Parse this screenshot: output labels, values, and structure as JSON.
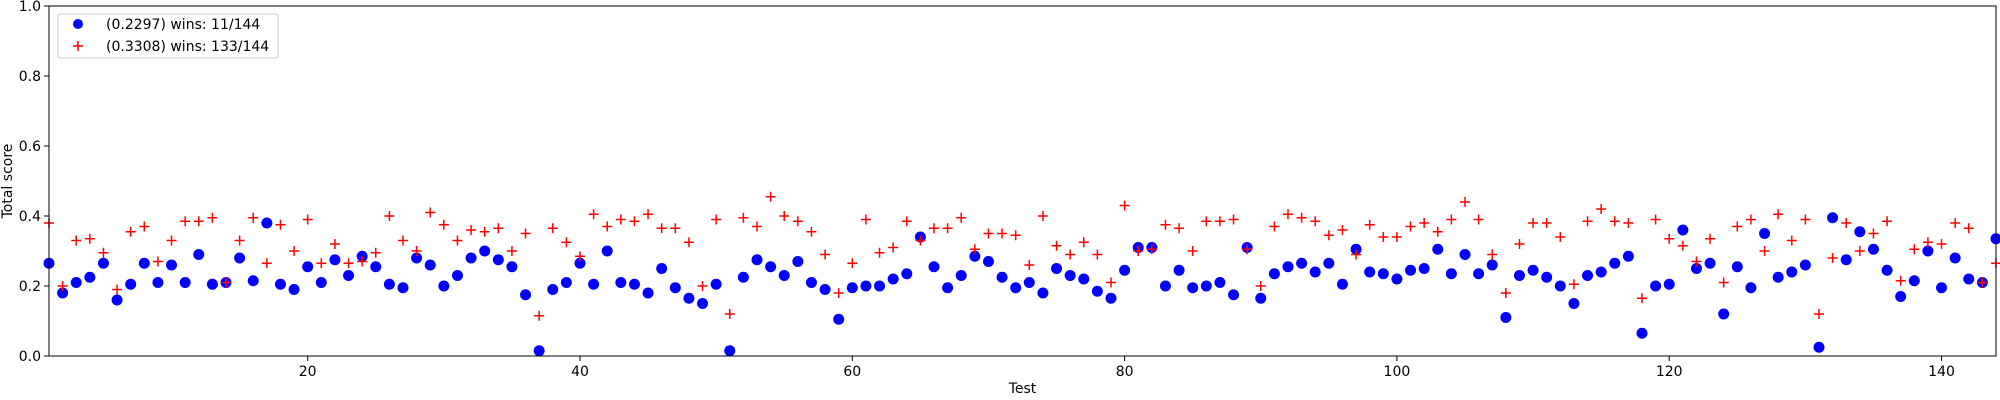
{
  "chart_data": {
    "type": "scatter",
    "title": "",
    "xlabel": "Test",
    "ylabel": "Total score",
    "xlim": [
      1,
      144
    ],
    "ylim": [
      0,
      1
    ],
    "xticks": [
      20,
      40,
      60,
      80,
      100,
      120,
      140
    ],
    "yticks": [
      0.0,
      0.2,
      0.4,
      0.6,
      0.8,
      1.0
    ],
    "xtick_labels": [
      "20",
      "40",
      "60",
      "80",
      "100",
      "120",
      "140"
    ],
    "ytick_labels": [
      "0.0",
      "0.2",
      "0.4",
      "0.6",
      "0.8",
      "1.0"
    ],
    "grid": false,
    "legend_position": "top-left",
    "series": [
      {
        "name": "(0.2297) wins: 11/144",
        "marker": "circle",
        "color": "#0000ff",
        "values": [
          0.265,
          0.18,
          0.21,
          0.225,
          0.265,
          0.16,
          0.205,
          0.265,
          0.21,
          0.26,
          0.21,
          0.29,
          0.205,
          0.21,
          0.28,
          0.215,
          0.38,
          0.205,
          0.19,
          0.255,
          0.21,
          0.275,
          0.23,
          0.285,
          0.255,
          0.205,
          0.195,
          0.28,
          0.26,
          0.2,
          0.23,
          0.28,
          0.3,
          0.275,
          0.255,
          0.175,
          0.015,
          0.19,
          0.21,
          0.265,
          0.205,
          0.3,
          0.21,
          0.205,
          0.18,
          0.25,
          0.195,
          0.165,
          0.15,
          0.205,
          0.015,
          0.225,
          0.275,
          0.255,
          0.23,
          0.27,
          0.21,
          0.19,
          0.105,
          0.195,
          0.2,
          0.2,
          0.22,
          0.235,
          0.34,
          0.255,
          0.195,
          0.23,
          0.285,
          0.27,
          0.225,
          0.195,
          0.21,
          0.18,
          0.25,
          0.23,
          0.22,
          0.185,
          0.165,
          0.245,
          0.31,
          0.31,
          0.2,
          0.245,
          0.195,
          0.2,
          0.21,
          0.175,
          0.31,
          0.165,
          0.235,
          0.255,
          0.265,
          0.24,
          0.265,
          0.205,
          0.305,
          0.24,
          0.235,
          0.22,
          0.245,
          0.25,
          0.305,
          0.235,
          0.29,
          0.235,
          0.26,
          0.11,
          0.23,
          0.245,
          0.225,
          0.2,
          0.15,
          0.23,
          0.24,
          0.265,
          0.285,
          0.065,
          0.2,
          0.205,
          0.36,
          0.25,
          0.265,
          0.12,
          0.255,
          0.195,
          0.35,
          0.225,
          0.24,
          0.26,
          0.025,
          0.395,
          0.275,
          0.355,
          0.305,
          0.245,
          0.17,
          0.215,
          0.3,
          0.195,
          0.28,
          0.22,
          0.21,
          0.335
        ]
      },
      {
        "name": "(0.3308) wins: 133/144",
        "marker": "plus",
        "color": "#ff0000",
        "values": [
          0.38,
          0.2,
          0.33,
          0.335,
          0.295,
          0.19,
          0.355,
          0.37,
          0.27,
          0.33,
          0.385,
          0.385,
          0.395,
          0.21,
          0.33,
          0.395,
          0.265,
          0.375,
          0.3,
          0.39,
          0.265,
          0.32,
          0.265,
          0.27,
          0.295,
          0.4,
          0.33,
          0.3,
          0.41,
          0.375,
          0.33,
          0.36,
          0.355,
          0.365,
          0.3,
          0.35,
          0.115,
          0.365,
          0.325,
          0.285,
          0.405,
          0.37,
          0.39,
          0.385,
          0.405,
          0.365,
          0.365,
          0.325,
          0.2,
          0.39,
          0.12,
          0.395,
          0.37,
          0.455,
          0.4,
          0.385,
          0.355,
          0.29,
          0.18,
          0.265,
          0.39,
          0.295,
          0.31,
          0.385,
          0.33,
          0.365,
          0.365,
          0.395,
          0.305,
          0.35,
          0.35,
          0.345,
          0.26,
          0.4,
          0.315,
          0.29,
          0.325,
          0.29,
          0.21,
          0.43,
          0.3,
          0.305,
          0.375,
          0.365,
          0.3,
          0.385,
          0.385,
          0.39,
          0.305,
          0.2,
          0.37,
          0.405,
          0.395,
          0.385,
          0.345,
          0.36,
          0.29,
          0.375,
          0.34,
          0.34,
          0.37,
          0.38,
          0.355,
          0.39,
          0.44,
          0.39,
          0.29,
          0.18,
          0.32,
          0.38,
          0.38,
          0.34,
          0.205,
          0.385,
          0.42,
          0.385,
          0.38,
          0.165,
          0.39,
          0.335,
          0.315,
          0.27,
          0.335,
          0.21,
          0.37,
          0.39,
          0.3,
          0.405,
          0.33,
          0.39,
          0.12,
          0.28,
          0.38,
          0.3,
          0.35,
          0.385,
          0.215,
          0.305,
          0.325,
          0.32,
          0.38,
          0.365,
          0.21,
          0.265
        ]
      }
    ]
  }
}
